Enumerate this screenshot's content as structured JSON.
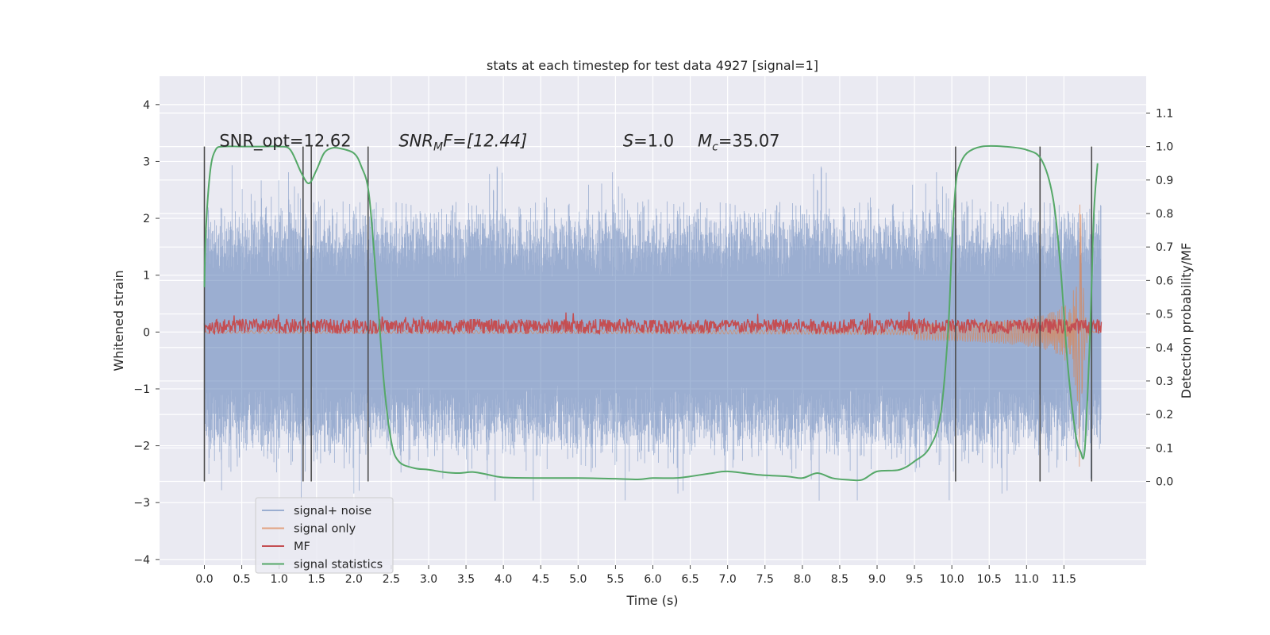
{
  "chart_data": {
    "type": "line",
    "title": "stats at each timestep for test data 4927 [signal=1]",
    "xlabel": "Time (s)",
    "ylabel": "Whitened strain",
    "y2label": "Detection probability/MF",
    "xlim": [
      -0.6,
      12.6
    ],
    "ylim": [
      -4.1,
      4.5
    ],
    "y2lim": [
      -0.25,
      1.21
    ],
    "x_ticks": [
      "0.0",
      "0.5",
      "1.0",
      "1.5",
      "2.0",
      "2.5",
      "3.0",
      "3.5",
      "4.0",
      "4.5",
      "5.0",
      "5.5",
      "6.0",
      "6.5",
      "7.0",
      "7.5",
      "8.0",
      "8.5",
      "9.0",
      "9.5",
      "10.0",
      "10.5",
      "11.0",
      "11.5"
    ],
    "y_ticks": [
      "4",
      "3",
      "2",
      "1",
      "0",
      "−1",
      "−2",
      "−3",
      "−4"
    ],
    "y2_ticks": [
      "1.1",
      "1.0",
      "0.9",
      "0.8",
      "0.7",
      "0.6",
      "0.5",
      "0.4",
      "0.3",
      "0.2",
      "0.1",
      "0.0"
    ],
    "grid": true,
    "legend_position": "lower-left",
    "annotations": [
      {
        "base": "SNR_opt=12.62",
        "x": 0.2
      },
      {
        "base": "SNR",
        "sub": "M",
        "tail": "F=[12.44]",
        "italic": true,
        "x": 2.6
      },
      {
        "base": "S",
        "tail": "=1.0",
        "italic": true,
        "x": 5.6
      },
      {
        "base": "M",
        "sub": "c",
        "tail": "=35.07",
        "italic": true,
        "x": 6.6
      }
    ],
    "annotation_y2": 1.0,
    "series": [
      {
        "name": "signal+ noise",
        "color": "#4c72b0",
        "alpha": 0.5,
        "noise_amplitude": 1.7,
        "range": [
          0,
          12
        ]
      },
      {
        "name": "signal only",
        "color": "#dd8452",
        "alpha": 0.7,
        "chirp_end": 11.72,
        "peak": 2.6,
        "range": [
          0,
          12
        ]
      },
      {
        "name": "MF",
        "color": "#c44e52",
        "baseline": 0.1,
        "spread": 0.13,
        "range": [
          0,
          12
        ]
      },
      {
        "name": "signal statistics",
        "color": "#55a868",
        "axis": "right",
        "x": [
          0.0,
          0.02,
          0.08,
          0.15,
          0.25,
          0.5,
          0.8,
          1.0,
          1.15,
          1.3,
          1.4,
          1.5,
          1.6,
          1.7,
          1.8,
          2.0,
          2.1,
          2.2,
          2.3,
          2.4,
          2.5,
          2.6,
          2.8,
          3.0,
          3.2,
          3.4,
          3.6,
          3.8,
          4.0,
          4.5,
          5.0,
          5.5,
          5.8,
          6.0,
          6.3,
          6.5,
          6.8,
          7.0,
          7.4,
          7.8,
          8.0,
          8.2,
          8.4,
          8.6,
          8.8,
          9.0,
          9.3,
          9.5,
          9.7,
          9.85,
          9.95,
          10.0,
          10.05,
          10.1,
          10.2,
          10.4,
          10.7,
          11.0,
          11.2,
          11.35,
          11.45,
          11.55,
          11.65,
          11.72,
          11.78,
          11.85,
          11.9,
          11.95
        ],
        "y": [
          0.58,
          0.75,
          0.93,
          0.99,
          1.0,
          1.0,
          1.0,
          1.0,
          0.99,
          0.92,
          0.89,
          0.93,
          0.98,
          0.995,
          0.995,
          0.98,
          0.94,
          0.86,
          0.6,
          0.3,
          0.12,
          0.06,
          0.04,
          0.035,
          0.028,
          0.025,
          0.028,
          0.02,
          0.012,
          0.01,
          0.01,
          0.008,
          0.006,
          0.01,
          0.01,
          0.015,
          0.025,
          0.03,
          0.02,
          0.015,
          0.01,
          0.025,
          0.01,
          0.005,
          0.005,
          0.03,
          0.035,
          0.06,
          0.1,
          0.2,
          0.45,
          0.7,
          0.88,
          0.94,
          0.98,
          1.0,
          1.0,
          0.99,
          0.96,
          0.85,
          0.65,
          0.35,
          0.15,
          0.09,
          0.1,
          0.45,
          0.8,
          0.95
        ]
      }
    ],
    "vertical_lines": [
      0.0,
      1.32,
      1.43,
      2.19,
      10.05,
      11.18,
      11.87
    ]
  }
}
